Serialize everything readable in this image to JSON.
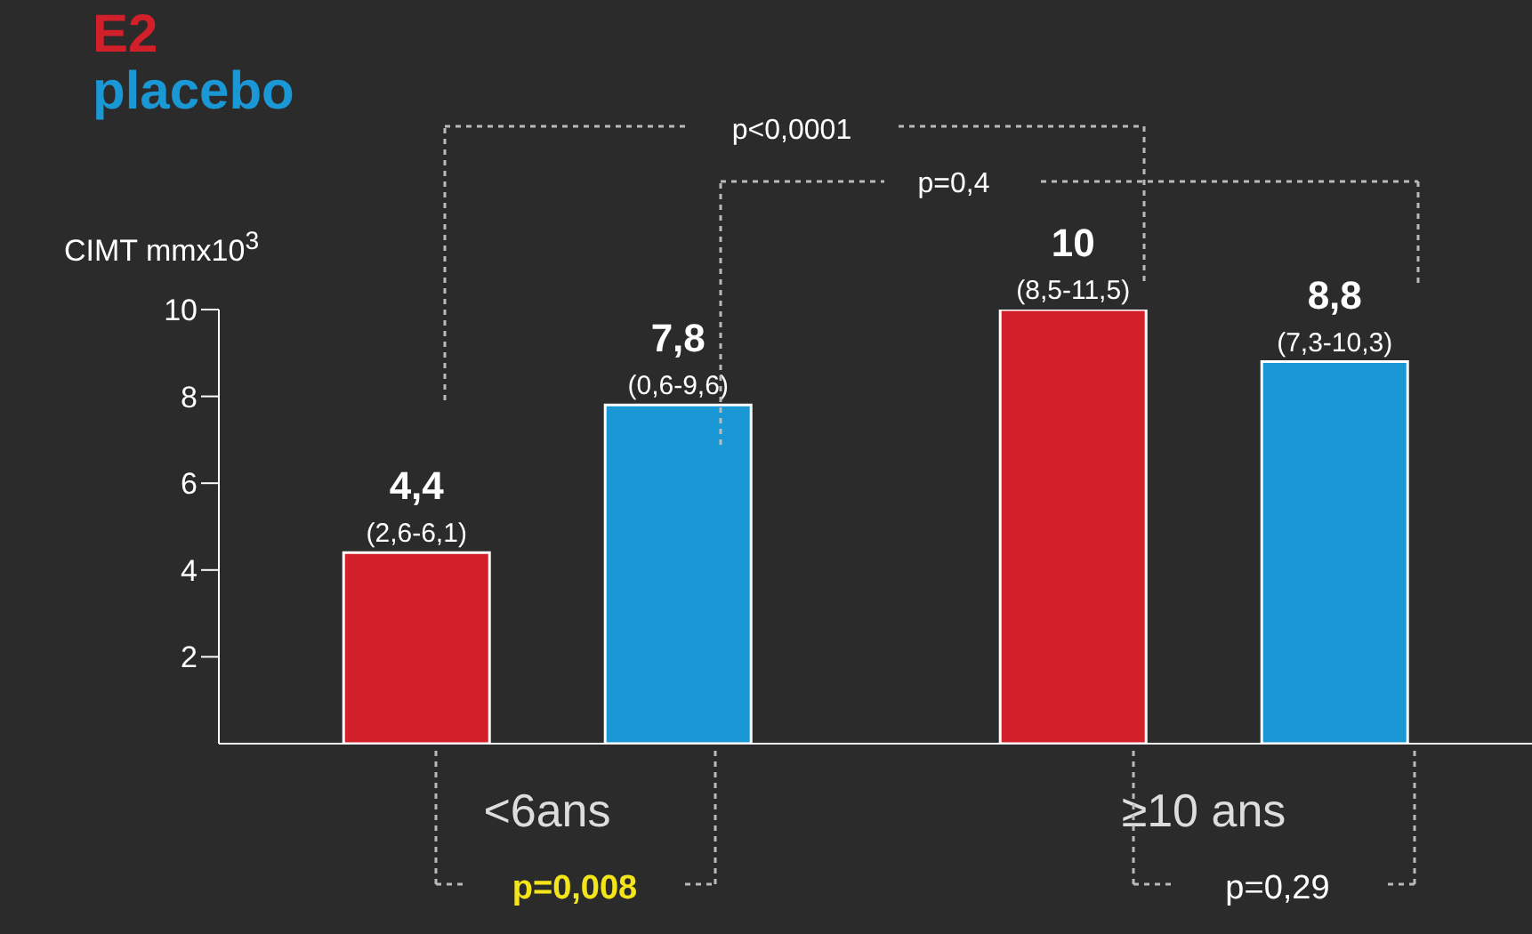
{
  "chart_data": {
    "type": "bar",
    "ylabel": "CIMT mmx10$^{3}$",
    "categories": [
      "<6ans",
      "≥10 ans"
    ],
    "series": [
      {
        "name": "E2",
        "color": "#d2202a",
        "values": [
          4.4,
          10
        ],
        "value_labels": [
          "4,4\n(2,6-6,1)",
          "10\n(8,5-11,5)"
        ]
      },
      {
        "name": "placebo",
        "color": "#1a98d5",
        "values": [
          7.8,
          8.8
        ],
        "value_labels": [
          "7,8\n(0,6-9,6)",
          "8,8\n(7,3-10,3)"
        ]
      }
    ],
    "ylim": [
      0,
      10
    ],
    "yticks": [
      2,
      4,
      6,
      8,
      10
    ],
    "grid": false,
    "legend": "top left",
    "annotations": [
      "p<0,0001",
      "p=0,4",
      "p=0,008",
      "p=0,29"
    ]
  }
}
